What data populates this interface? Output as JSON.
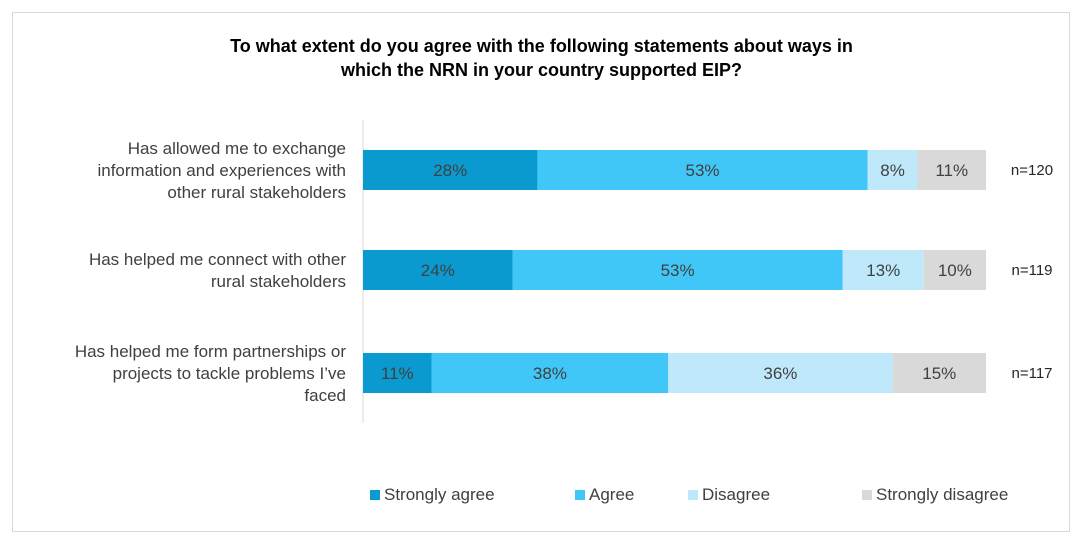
{
  "chart_data": {
    "type": "bar",
    "orientation": "horizontal",
    "stacked": true,
    "title": "To what extent do you agree with the following statements about ways in which the NRN in your country supported EIP?",
    "title_lines": [
      "To what extent do you agree with the following statements about ways in",
      "which the NRN in your country supported EIP?"
    ],
    "xlim": [
      0,
      100
    ],
    "grid": false,
    "legend_position": "bottom",
    "categories": [
      {
        "label_lines": [
          "Has allowed me to exchange",
          "information and experiences with",
          "other rural stakeholders"
        ],
        "n_label": "n=120"
      },
      {
        "label_lines": [
          "Has helped me connect with other",
          "rural stakeholders"
        ],
        "n_label": "n=119"
      },
      {
        "label_lines": [
          "Has helped me form partnerships or",
          "projects to tackle problems I’ve",
          "faced"
        ],
        "n_label": "n=117"
      }
    ],
    "series": [
      {
        "name": "Strongly agree",
        "color": "#0a9ad0",
        "values": [
          28,
          24,
          11
        ],
        "labels": [
          "28%",
          "24%",
          "11%"
        ]
      },
      {
        "name": "Agree",
        "color": "#41c7f7",
        "values": [
          53,
          53,
          38
        ],
        "labels": [
          "53%",
          "53%",
          "38%"
        ]
      },
      {
        "name": "Disagree",
        "color": "#bfe9fb",
        "values": [
          8,
          13,
          36
        ],
        "labels": [
          "8%",
          "13%",
          "36%"
        ]
      },
      {
        "name": "Strongly disagree",
        "color": "#d9d9d9",
        "values": [
          11,
          10,
          15
        ],
        "labels": [
          "11%",
          "10%",
          "15%"
        ]
      }
    ]
  }
}
